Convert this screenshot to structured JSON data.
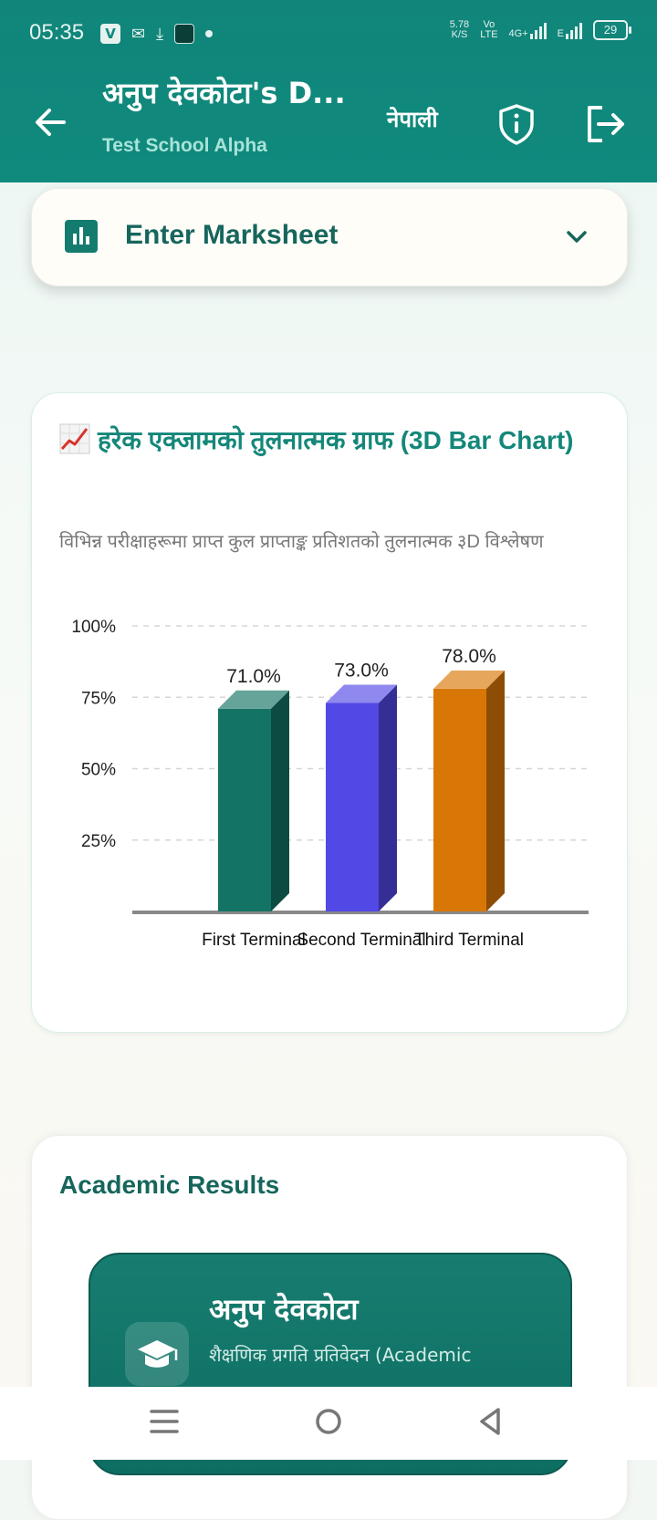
{
  "status": {
    "time": "05:35",
    "net_speed_top": "5.78",
    "net_speed_bottom": "K/S",
    "volte_top": "Vo",
    "volte_bottom": "LTE",
    "network_1": "4G+",
    "network_2": "E",
    "battery": "29"
  },
  "header": {
    "title": "अनुप देवकोटा's D...",
    "subtitle": "Test School Alpha",
    "language_label": "नेपाली"
  },
  "marksheet": {
    "label": "Enter Marksheet"
  },
  "chart_section": {
    "icon": "📈",
    "title": "हरेक एक्जामको तुलनात्मक ग्राफ (3D Bar Chart)",
    "subtitle": "विभिन्न परीक्षाहरूमा प्राप्त कुल प्राप्ताङ्क प्रतिशतको तुलनात्मक ३D विश्लेषण"
  },
  "chart_data": {
    "type": "bar",
    "title": "",
    "xlabel": "",
    "ylabel": "",
    "categories": [
      "First Terminal",
      "Second Terminal",
      "Third Terminal"
    ],
    "values": [
      71.0,
      73.0,
      78.0
    ],
    "value_labels": [
      "71.0%",
      "73.0%",
      "78.0%"
    ],
    "ylim": [
      0,
      100
    ],
    "yticks": [
      25,
      50,
      75,
      100
    ],
    "ytick_labels": [
      "25%",
      "50%",
      "75%",
      "100%"
    ],
    "grid": true,
    "colors": [
      "#137364",
      "#5248e5",
      "#d97706"
    ]
  },
  "results": {
    "title": "Academic Results",
    "student_name": "अनुप देवकोटा",
    "report_label": "शैक्षणिक प्रगति प्रतिवेदन (Academic"
  },
  "navbar": {
    "icons": [
      "menu-icon",
      "home-icon",
      "back-icon"
    ]
  },
  "colors": {
    "header": "#0f8a7d",
    "accent": "#14877a"
  }
}
